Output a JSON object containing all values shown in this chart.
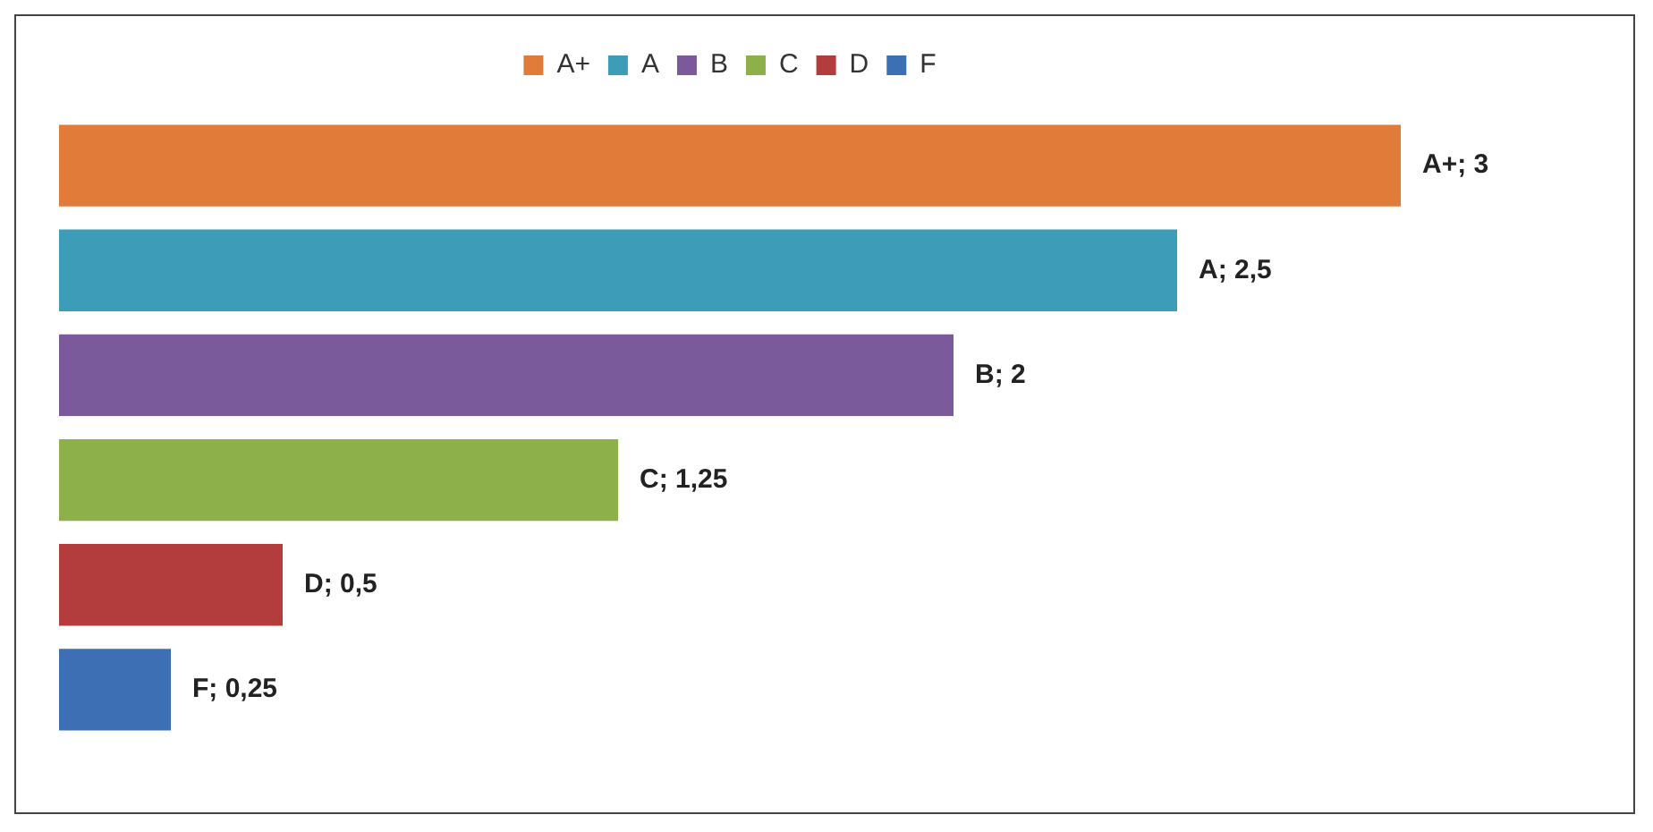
{
  "chart_data": {
    "type": "bar",
    "orientation": "horizontal",
    "categories": [
      null
    ],
    "series": [
      {
        "name": "A+",
        "color": "#e07b39",
        "values": [
          3
        ],
        "value_labels": [
          "A+; 3"
        ]
      },
      {
        "name": "A",
        "color": "#3d9cb8",
        "values": [
          2.5
        ],
        "value_labels": [
          "A; 2,5"
        ]
      },
      {
        "name": "B",
        "color": "#7a5a9a",
        "values": [
          2
        ],
        "value_labels": [
          "B; 2"
        ]
      },
      {
        "name": "C",
        "color": "#8db04a",
        "values": [
          1.25
        ],
        "value_labels": [
          "C; 1,25"
        ]
      },
      {
        "name": "D",
        "color": "#b33c3c",
        "values": [
          0.5
        ],
        "value_labels": [
          "D; 0,5"
        ]
      },
      {
        "name": "F",
        "color": "#3d6fb5",
        "values": [
          0.25
        ],
        "value_labels": [
          "F; 0,25"
        ]
      }
    ],
    "legend": "top",
    "grid": false
  }
}
